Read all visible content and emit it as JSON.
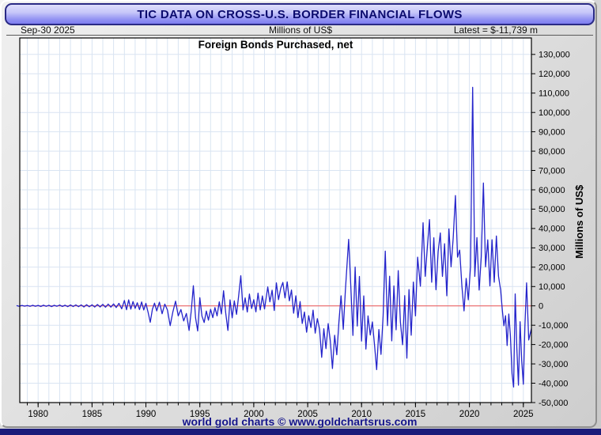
{
  "header": {
    "title": "TIC DATA ON CROSS-U.S. BORDER FINANCIAL FLOWS"
  },
  "subheader": {
    "date": "Sep-30  2025",
    "units": "Millions of US$",
    "latest": "Latest = $-11,739 m"
  },
  "footer": {
    "text": "world gold charts © www.goldchartsrus.com"
  },
  "colors": {
    "line": "#2424cb",
    "zero_line": "#ee5555",
    "grid": "#d9e4f2",
    "plot_border": "#000000",
    "plot_bg": "#ffffff",
    "title_bar_text": "#0b0b6e",
    "footer_text": "#16168c",
    "bottom_strip": "#1b1b7a"
  },
  "chart_data": {
    "type": "line",
    "title": "Foreign Bonds Purchased, net",
    "ylabel": "Millions of US$",
    "xlim": [
      1978.3,
      2025.75
    ],
    "ylim": [
      -50000,
      138500
    ],
    "y_ticks": [
      -50000,
      -40000,
      -30000,
      -20000,
      -10000,
      0,
      10000,
      20000,
      30000,
      40000,
      50000,
      60000,
      70000,
      80000,
      90000,
      100000,
      110000,
      120000,
      130000
    ],
    "x_ticks_major": [
      1980,
      1985,
      1990,
      1995,
      2000,
      2005,
      2010,
      2015,
      2020,
      2025
    ],
    "x_minor_interval": 1,
    "grid": true,
    "zero_line": 0,
    "legend": "none",
    "latest_value": -11739,
    "latest_date": "Sep-30 2025",
    "series": [
      {
        "name": "Foreign Bonds Purchased, net",
        "points": [
          [
            1978.0,
            150
          ],
          [
            1978.25,
            -200
          ],
          [
            1978.5,
            250
          ],
          [
            1978.75,
            -150
          ],
          [
            1979.0,
            200
          ],
          [
            1979.25,
            -250
          ],
          [
            1979.5,
            300
          ],
          [
            1979.75,
            -200
          ],
          [
            1980.0,
            250
          ],
          [
            1980.25,
            -300
          ],
          [
            1980.5,
            350
          ],
          [
            1980.75,
            -250
          ],
          [
            1981.0,
            300
          ],
          [
            1981.25,
            -350
          ],
          [
            1981.5,
            300
          ],
          [
            1981.75,
            -200
          ],
          [
            1982.0,
            400
          ],
          [
            1982.25,
            -300
          ],
          [
            1982.5,
            350
          ],
          [
            1982.75,
            -400
          ],
          [
            1983.0,
            450
          ],
          [
            1983.25,
            -350
          ],
          [
            1983.5,
            500
          ],
          [
            1983.75,
            -400
          ],
          [
            1984.0,
            500
          ],
          [
            1984.25,
            -550
          ],
          [
            1984.5,
            600
          ],
          [
            1984.75,
            -450
          ],
          [
            1985.0,
            550
          ],
          [
            1985.25,
            -600
          ],
          [
            1985.5,
            700
          ],
          [
            1985.75,
            -550
          ],
          [
            1986.0,
            800
          ],
          [
            1986.25,
            -700
          ],
          [
            1986.5,
            900
          ],
          [
            1986.75,
            -650
          ],
          [
            1987.0,
            1000
          ],
          [
            1987.25,
            -850
          ],
          [
            1987.5,
            1300
          ],
          [
            1987.75,
            -1500
          ],
          [
            1988.0,
            2800
          ],
          [
            1988.2,
            -2000
          ],
          [
            1988.4,
            3100
          ],
          [
            1988.6,
            -1700
          ],
          [
            1988.8,
            2200
          ],
          [
            1989.0,
            -1300
          ],
          [
            1989.2,
            1600
          ],
          [
            1989.4,
            -1900
          ],
          [
            1989.6,
            2000
          ],
          [
            1989.8,
            -2100
          ],
          [
            1990.0,
            1300
          ],
          [
            1990.2,
            -3400
          ],
          [
            1990.4,
            -8500
          ],
          [
            1990.6,
            -1800
          ],
          [
            1990.8,
            1400
          ],
          [
            1991.0,
            -2600
          ],
          [
            1991.25,
            1900
          ],
          [
            1991.5,
            -4100
          ],
          [
            1991.75,
            900
          ],
          [
            1992.0,
            -2200
          ],
          [
            1992.25,
            -10200
          ],
          [
            1992.5,
            -3100
          ],
          [
            1992.75,
            2400
          ],
          [
            1993.0,
            -5200
          ],
          [
            1993.25,
            -1900
          ],
          [
            1993.5,
            -7800
          ],
          [
            1993.75,
            -3900
          ],
          [
            1994.0,
            -12700
          ],
          [
            1994.2,
            -2800
          ],
          [
            1994.4,
            10400
          ],
          [
            1994.6,
            -6200
          ],
          [
            1994.8,
            -13000
          ],
          [
            1995.0,
            4200
          ],
          [
            1995.2,
            -5300
          ],
          [
            1995.4,
            -8600
          ],
          [
            1995.6,
            -2700
          ],
          [
            1995.8,
            -7400
          ],
          [
            1996.0,
            -1800
          ],
          [
            1996.2,
            -6100
          ],
          [
            1996.4,
            -900
          ],
          [
            1996.6,
            -5200
          ],
          [
            1996.8,
            2100
          ],
          [
            1997.0,
            -4200
          ],
          [
            1997.2,
            7800
          ],
          [
            1997.4,
            -3600
          ],
          [
            1997.6,
            -12700
          ],
          [
            1997.8,
            3100
          ],
          [
            1998.0,
            -6200
          ],
          [
            1998.2,
            2600
          ],
          [
            1998.4,
            -4400
          ],
          [
            1998.6,
            5200
          ],
          [
            1998.8,
            15600
          ],
          [
            1999.0,
            -2100
          ],
          [
            1999.2,
            4100
          ],
          [
            1999.4,
            -3200
          ],
          [
            1999.6,
            6100
          ],
          [
            1999.8,
            -1400
          ],
          [
            2000.0,
            3200
          ],
          [
            2000.2,
            -3100
          ],
          [
            2000.4,
            6600
          ],
          [
            2000.6,
            -2100
          ],
          [
            2000.8,
            5100
          ],
          [
            2001.0,
            -1600
          ],
          [
            2001.3,
            9800
          ],
          [
            2001.5,
            2100
          ],
          [
            2001.7,
            8100
          ],
          [
            2001.9,
            -2400
          ],
          [
            2002.1,
            11900
          ],
          [
            2002.3,
            3200
          ],
          [
            2002.5,
            9100
          ],
          [
            2002.7,
            12100
          ],
          [
            2002.9,
            4100
          ],
          [
            2003.1,
            12400
          ],
          [
            2003.3,
            2600
          ],
          [
            2003.5,
            8200
          ],
          [
            2003.7,
            -3800
          ],
          [
            2003.9,
            5200
          ],
          [
            2004.1,
            -6100
          ],
          [
            2004.3,
            2200
          ],
          [
            2004.5,
            -9100
          ],
          [
            2004.7,
            -3200
          ],
          [
            2004.9,
            -13600
          ],
          [
            2005.1,
            -5100
          ],
          [
            2005.3,
            -11200
          ],
          [
            2005.5,
            -2200
          ],
          [
            2005.7,
            -14100
          ],
          [
            2005.9,
            -6600
          ],
          [
            2006.1,
            -12000
          ],
          [
            2006.3,
            -26600
          ],
          [
            2006.5,
            -11800
          ],
          [
            2006.7,
            -22100
          ],
          [
            2006.9,
            -9200
          ],
          [
            2007.1,
            -18100
          ],
          [
            2007.3,
            -32400
          ],
          [
            2007.5,
            -15200
          ],
          [
            2007.7,
            -25300
          ],
          [
            2007.9,
            -8100
          ],
          [
            2008.1,
            5200
          ],
          [
            2008.3,
            -12100
          ],
          [
            2008.5,
            8300
          ],
          [
            2008.8,
            34400
          ],
          [
            2009.0,
            10200
          ],
          [
            2009.2,
            -15300
          ],
          [
            2009.4,
            20100
          ],
          [
            2009.6,
            -10400
          ],
          [
            2009.8,
            15200
          ],
          [
            2010.0,
            -18200
          ],
          [
            2010.2,
            5100
          ],
          [
            2010.4,
            -22300
          ],
          [
            2010.6,
            -5200
          ],
          [
            2010.8,
            -15100
          ],
          [
            2011.0,
            -8300
          ],
          [
            2011.2,
            -20200
          ],
          [
            2011.4,
            -33000
          ],
          [
            2011.6,
            -12200
          ],
          [
            2011.8,
            -25100
          ],
          [
            2012.0,
            -5100
          ],
          [
            2012.2,
            28300
          ],
          [
            2012.4,
            -10200
          ],
          [
            2012.6,
            15300
          ],
          [
            2012.8,
            -18100
          ],
          [
            2013.0,
            10300
          ],
          [
            2013.2,
            -12400
          ],
          [
            2013.4,
            18200
          ],
          [
            2013.6,
            -8200
          ],
          [
            2013.8,
            -20100
          ],
          [
            2014.0,
            5300
          ],
          [
            2014.2,
            -27000
          ],
          [
            2014.4,
            8400
          ],
          [
            2014.6,
            -15200
          ],
          [
            2014.8,
            12300
          ],
          [
            2015.0,
            -5200
          ],
          [
            2015.2,
            25200
          ],
          [
            2015.45,
            10200
          ],
          [
            2015.7,
            43000
          ],
          [
            2015.9,
            15300
          ],
          [
            2016.1,
            30200
          ],
          [
            2016.3,
            44600
          ],
          [
            2016.5,
            12200
          ],
          [
            2016.7,
            35200
          ],
          [
            2016.9,
            8300
          ],
          [
            2017.1,
            28200
          ],
          [
            2017.3,
            37700
          ],
          [
            2017.5,
            15200
          ],
          [
            2017.7,
            32100
          ],
          [
            2017.9,
            5200
          ],
          [
            2018.1,
            39800
          ],
          [
            2018.3,
            20200
          ],
          [
            2018.5,
            35100
          ],
          [
            2018.7,
            57000
          ],
          [
            2018.9,
            25200
          ],
          [
            2019.1,
            28800
          ],
          [
            2019.3,
            10200
          ],
          [
            2019.5,
            -2600
          ],
          [
            2019.7,
            14200
          ],
          [
            2019.9,
            3100
          ],
          [
            2020.1,
            20300
          ],
          [
            2020.3,
            113000
          ],
          [
            2020.5,
            15200
          ],
          [
            2020.7,
            35300
          ],
          [
            2020.9,
            8200
          ],
          [
            2021.1,
            25300
          ],
          [
            2021.3,
            63500
          ],
          [
            2021.5,
            20200
          ],
          [
            2021.7,
            34100
          ],
          [
            2021.9,
            10300
          ],
          [
            2022.1,
            34200
          ],
          [
            2022.3,
            12200
          ],
          [
            2022.5,
            36100
          ],
          [
            2022.7,
            15300
          ],
          [
            2022.9,
            8100
          ],
          [
            2023.05,
            -2100
          ],
          [
            2023.2,
            -10300
          ],
          [
            2023.35,
            -5100
          ],
          [
            2023.5,
            -20500
          ],
          [
            2023.65,
            -4200
          ],
          [
            2023.8,
            -15300
          ],
          [
            2023.95,
            -35100
          ],
          [
            2024.1,
            -42000
          ],
          [
            2024.25,
            6200
          ],
          [
            2024.4,
            -22200
          ],
          [
            2024.55,
            -41000
          ],
          [
            2024.7,
            -8200
          ],
          [
            2024.85,
            -28100
          ],
          [
            2025.0,
            -40500
          ],
          [
            2025.15,
            -10200
          ],
          [
            2025.3,
            11900
          ],
          [
            2025.5,
            -17600
          ],
          [
            2025.75,
            -11739
          ]
        ]
      }
    ]
  }
}
